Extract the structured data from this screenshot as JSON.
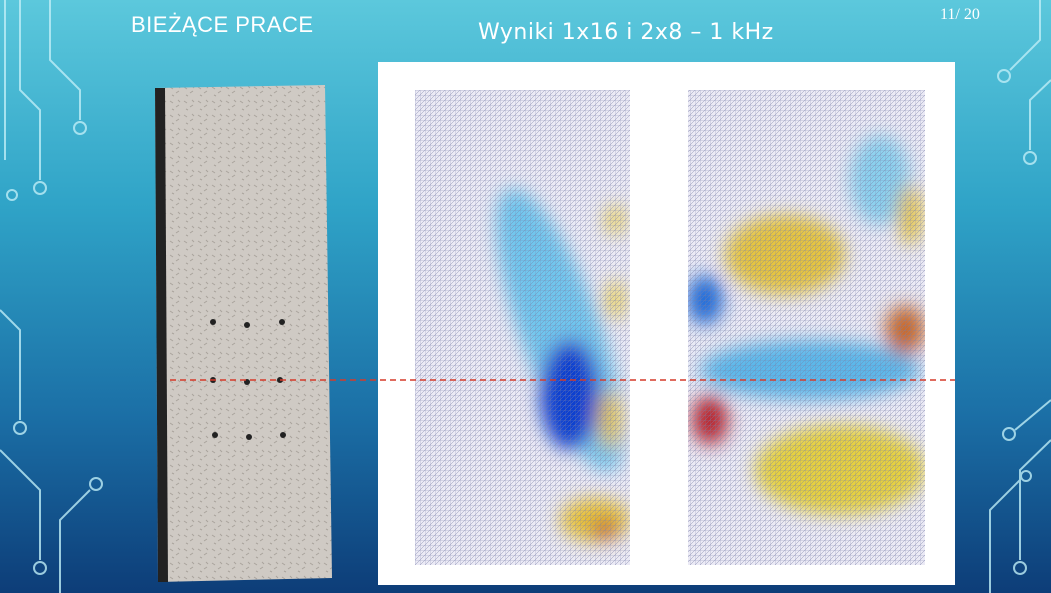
{
  "header": {
    "section": "BIEŻĄCE PRACE",
    "title": "Wyniki 1x16 i 2x8 – 1 kHz",
    "page": "11/ 20"
  }
}
